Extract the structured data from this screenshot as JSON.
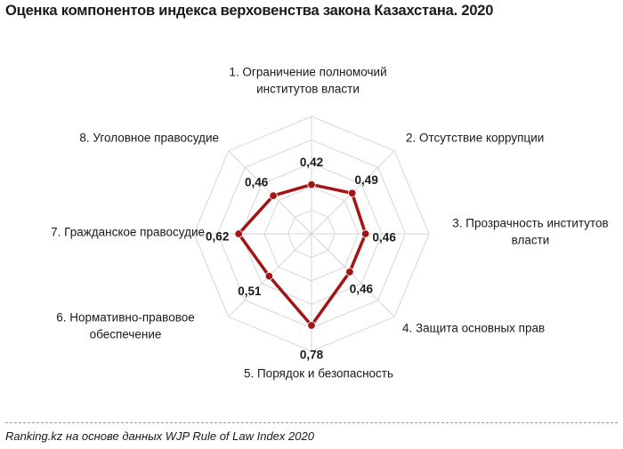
{
  "title": "Оценка компонентов индекса верховенства закона Казахстана. 2020",
  "source": "Ranking.kz на основе данных WJP Rule of Law Index 2020",
  "colors": {
    "series": "#a31515",
    "grid": "#d6d6d6"
  },
  "chart_data": {
    "type": "radar",
    "title": "Оценка компонентов индекса верховенства закона Казахстана. 2020",
    "axes": [
      {
        "label": [
          "1. Ограничение полномочий",
          "институтов власти"
        ],
        "value": 0.42,
        "value_text": "0,42"
      },
      {
        "label": [
          "2. Отсутствие коррупции"
        ],
        "value": 0.49,
        "value_text": "0,49"
      },
      {
        "label": [
          "3. Прозрачность институтов",
          "власти"
        ],
        "value": 0.46,
        "value_text": "0,46"
      },
      {
        "label": [
          "4. Защита основных прав"
        ],
        "value": 0.46,
        "value_text": "0,46"
      },
      {
        "label": [
          "5. Порядок и безопасность"
        ],
        "value": 0.78,
        "value_text": "0,78"
      },
      {
        "label": [
          "6. Нормативно-правовое",
          "обеспечение"
        ],
        "value": 0.51,
        "value_text": "0,51"
      },
      {
        "label": [
          "7. Гражданское правосудие"
        ],
        "value": 0.62,
        "value_text": "0,62"
      },
      {
        "label": [
          "8. Уголовное правосудие"
        ],
        "value": 0.46,
        "value_text": "0,46"
      }
    ],
    "range": [
      0,
      1
    ],
    "grid_rings": 5,
    "grid": true,
    "legend": false
  }
}
